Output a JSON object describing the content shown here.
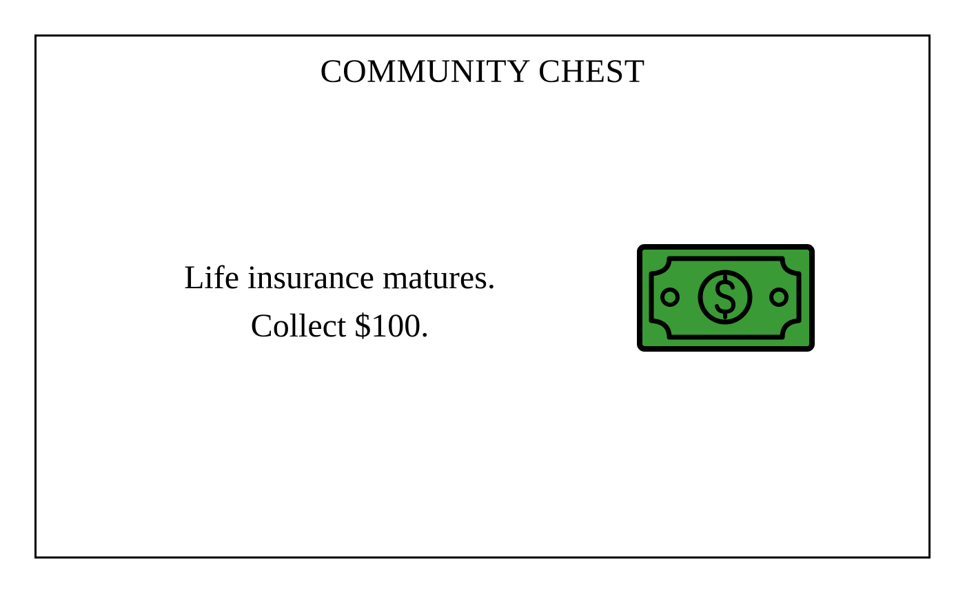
{
  "card": {
    "title": "COMMUNITY CHEST",
    "message_line1": "Life insurance matures.",
    "message_line2": "Collect $100.",
    "icon": "money-bill-icon",
    "colors": {
      "border": "#000000",
      "background": "#ffffff",
      "bill_fill": "#3a9a35",
      "bill_outline": "#000000"
    }
  }
}
